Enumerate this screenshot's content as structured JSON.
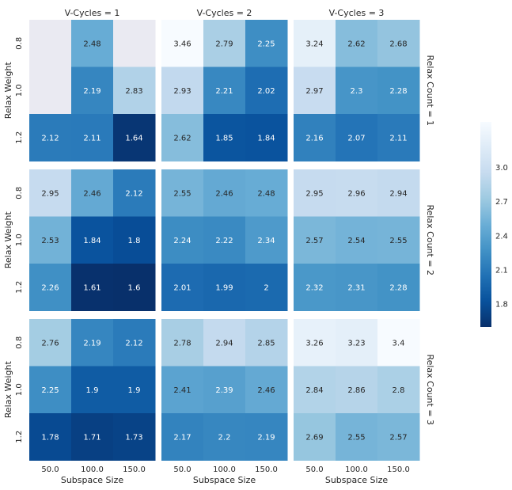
{
  "chart_data": {
    "type": "heatmap",
    "facet_col_label": "V-Cycles",
    "facet_row_label": "Relax Count",
    "col_facets": [
      "V-Cycles = 1",
      "V-Cycles = 2",
      "V-Cycles = 3"
    ],
    "row_facets": [
      "Relax Count = 1",
      "Relax Count = 2",
      "Relax Count = 3"
    ],
    "xlabel": "Subspace Size",
    "ylabel": "Relax Weight",
    "x_ticks": [
      "50.0",
      "100.0",
      "150.0"
    ],
    "y_ticks": [
      "0.8",
      "1.0",
      "1.2"
    ],
    "colormap": "Blues_r",
    "color_min": 1.6,
    "color_max": 3.4,
    "missing_color": "#eaeaf2",
    "colorbar_ticks": [
      "1.8",
      "2.1",
      "2.4",
      "2.7",
      "3.0"
    ],
    "colorbar_values": [
      1.8,
      2.1,
      2.4,
      2.7,
      3.0
    ],
    "panels": [
      [
        [
          [
            null,
            2.48,
            null
          ],
          [
            null,
            2.19,
            2.83
          ],
          [
            2.12,
            2.11,
            1.64
          ]
        ],
        [
          [
            3.46,
            2.79,
            2.25
          ],
          [
            2.93,
            2.21,
            2.02
          ],
          [
            2.62,
            1.85,
            1.84
          ]
        ],
        [
          [
            3.24,
            2.62,
            2.68
          ],
          [
            2.97,
            2.3,
            2.28
          ],
          [
            2.16,
            2.07,
            2.11
          ]
        ]
      ],
      [
        [
          [
            2.95,
            2.46,
            2.12
          ],
          [
            2.53,
            1.84,
            1.8
          ],
          [
            2.26,
            1.61,
            1.6
          ]
        ],
        [
          [
            2.55,
            2.46,
            2.48
          ],
          [
            2.24,
            2.22,
            2.34
          ],
          [
            2.01,
            1.99,
            2
          ]
        ],
        [
          [
            2.95,
            2.96,
            2.94
          ],
          [
            2.57,
            2.54,
            2.55
          ],
          [
            2.32,
            2.31,
            2.28
          ]
        ]
      ],
      [
        [
          [
            2.76,
            2.19,
            2.12
          ],
          [
            2.25,
            1.9,
            1.9
          ],
          [
            1.78,
            1.71,
            1.73
          ]
        ],
        [
          [
            2.78,
            2.94,
            2.85
          ],
          [
            2.41,
            2.39,
            2.46
          ],
          [
            2.17,
            2.2,
            2.19
          ]
        ],
        [
          [
            3.26,
            3.23,
            3.4
          ],
          [
            2.84,
            2.86,
            2.8
          ],
          [
            2.69,
            2.55,
            2.57
          ]
        ]
      ]
    ]
  }
}
